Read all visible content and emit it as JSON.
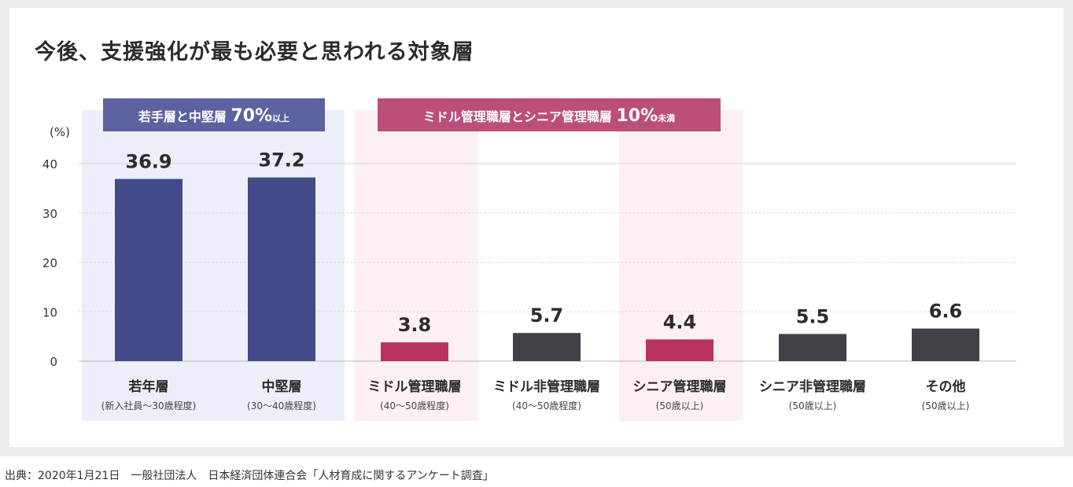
{
  "title": "今後、支援強化が最も必要と思われる対象層",
  "source": "出典：2020年1月21日　一般社団法人　日本経済団体連合会「人材育成に関するアンケート調査」",
  "colors": {
    "young_bar": "#434a89",
    "young_group_bg": "#eceef9",
    "young_banner": "#5b629f",
    "pink_bar": "#b8325e",
    "pink_group_bg": "#fdf0f5",
    "pink_banner": "#bc4e7a",
    "gray_bar": "#3e4146"
  },
  "groups": [
    {
      "label": "若手層と中堅層",
      "value": "70%",
      "suffix": "以上"
    },
    {
      "label": "ミドル管理職層とシニア管理職層",
      "value": "10%",
      "suffix": "未満"
    }
  ],
  "chart_data": {
    "type": "bar",
    "title": "今後、支援強化が最も必要と思われる対象層",
    "ylabel": "(%)",
    "xlabel": "",
    "ylim": [
      0,
      40
    ],
    "yticks": [
      0,
      10,
      20,
      30,
      40
    ],
    "grid": true,
    "categories": [
      "若年層",
      "中堅層",
      "ミドル管理職層",
      "ミドル非管理職層",
      "シニア管理職層",
      "シニア非管理職層",
      "その他"
    ],
    "sublabels": [
      "(新入社員〜30歳程度)",
      "(30〜40歳程度)",
      "(40〜50歳程度)",
      "(40〜50歳程度)",
      "(50歳以上)",
      "(50歳以上)",
      "(50歳以上)"
    ],
    "values": [
      36.9,
      37.2,
      3.8,
      5.7,
      4.4,
      5.5,
      6.6
    ],
    "value_labels": [
      "36.9",
      "37.2",
      "3.8",
      "5.7",
      "4.4",
      "5.5",
      "6.6"
    ],
    "bar_colors": [
      "#434a89",
      "#434a89",
      "#b8325e",
      "#3e4146",
      "#b8325e",
      "#3e4146",
      "#3e4146"
    ]
  }
}
